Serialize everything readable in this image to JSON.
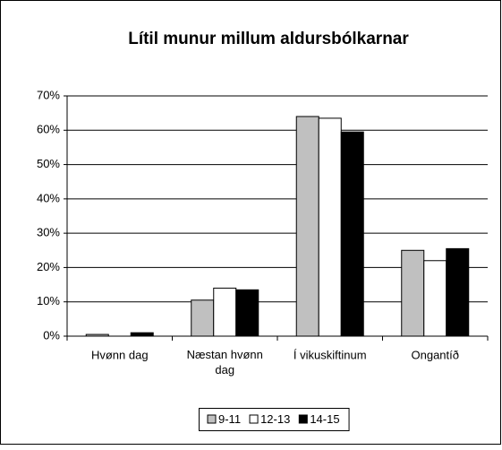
{
  "chart_data": {
    "type": "bar",
    "title": "Lítil munur millum aldursbólkarnar",
    "categories": [
      "Hvønn dag",
      "Næstan hvønn dag",
      "Í vikuskiftinum",
      "Ongantíð"
    ],
    "series": [
      {
        "name": "9-11",
        "color": "#c0c0c0",
        "values": [
          0.5,
          10.5,
          64,
          25
        ]
      },
      {
        "name": "12-13",
        "color": "#ffffff",
        "values": [
          0,
          14,
          63.5,
          22
        ]
      },
      {
        "name": "14-15",
        "color": "#000000",
        "values": [
          1,
          13.5,
          59.5,
          25.5
        ]
      }
    ],
    "ylim": [
      0,
      70
    ],
    "yticks": [
      {
        "value": 0,
        "label": "0%"
      },
      {
        "value": 10,
        "label": "10%"
      },
      {
        "value": 20,
        "label": "20%"
      },
      {
        "value": 30,
        "label": "30%"
      },
      {
        "value": 40,
        "label": "40%"
      },
      {
        "value": 50,
        "label": "50%"
      },
      {
        "value": 60,
        "label": "60%"
      },
      {
        "value": 70,
        "label": "70%"
      }
    ],
    "grid": true,
    "legend": "bottom"
  }
}
